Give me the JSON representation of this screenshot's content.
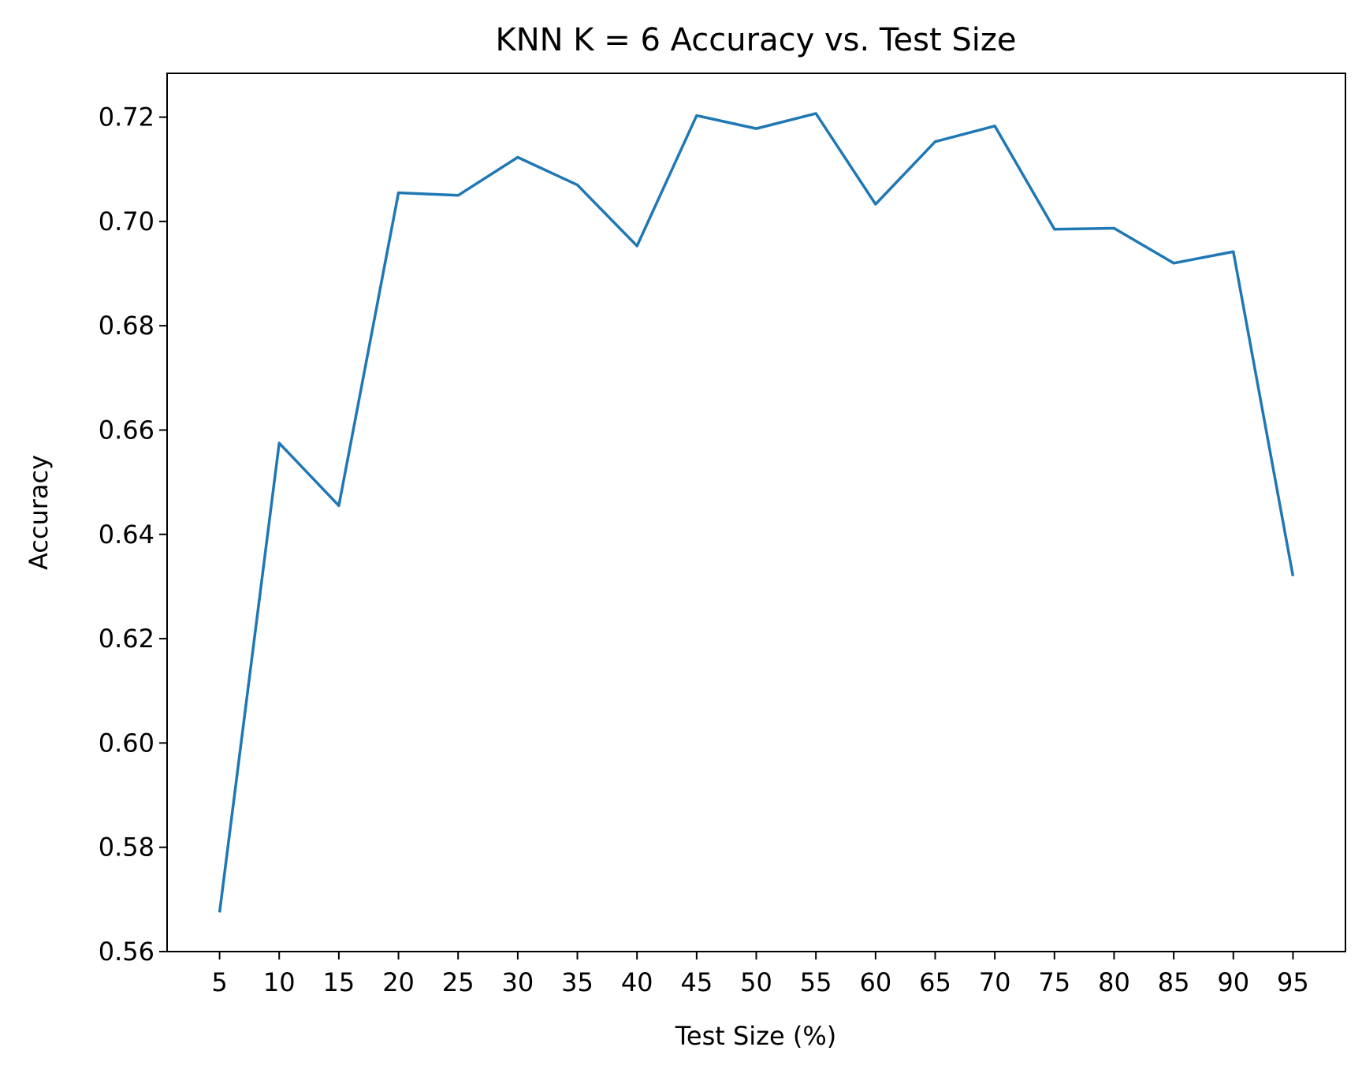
{
  "chart_data": {
    "type": "line",
    "title": "KNN K = 6 Accuracy vs. Test Size",
    "xlabel": "Test Size (%)",
    "ylabel": "Accuracy",
    "x": [
      5,
      10,
      15,
      20,
      25,
      30,
      35,
      40,
      45,
      50,
      55,
      60,
      65,
      70,
      75,
      80,
      85,
      90,
      95
    ],
    "series": [
      {
        "color": "#1f77b4",
        "values": [
          0.5675,
          0.6575,
          0.6455,
          0.7055,
          0.705,
          0.7123,
          0.707,
          0.6953,
          0.7203,
          0.7178,
          0.7207,
          0.7033,
          0.7153,
          0.7183,
          0.6985,
          0.6987,
          0.692,
          0.6942,
          0.632
        ]
      }
    ],
    "xlim": [
      0.6,
      99.4
    ],
    "ylim": [
      0.56,
      0.7284
    ],
    "yticks": [
      0.56,
      0.58,
      0.6,
      0.62,
      0.64,
      0.66,
      0.68,
      0.7,
      0.72
    ],
    "ytick_labels": [
      "0.56",
      "0.58",
      "0.60",
      "0.62",
      "0.64",
      "0.66",
      "0.68",
      "0.70",
      "0.72"
    ],
    "xticks": [
      5,
      10,
      15,
      20,
      25,
      30,
      35,
      40,
      45,
      50,
      55,
      60,
      65,
      70,
      75,
      80,
      85,
      90,
      95
    ],
    "xtick_labels": [
      "5",
      "10",
      "15",
      "20",
      "25",
      "30",
      "35",
      "40",
      "45",
      "50",
      "55",
      "60",
      "65",
      "70",
      "75",
      "80",
      "85",
      "90",
      "95"
    ],
    "grid": false,
    "legend": false
  }
}
